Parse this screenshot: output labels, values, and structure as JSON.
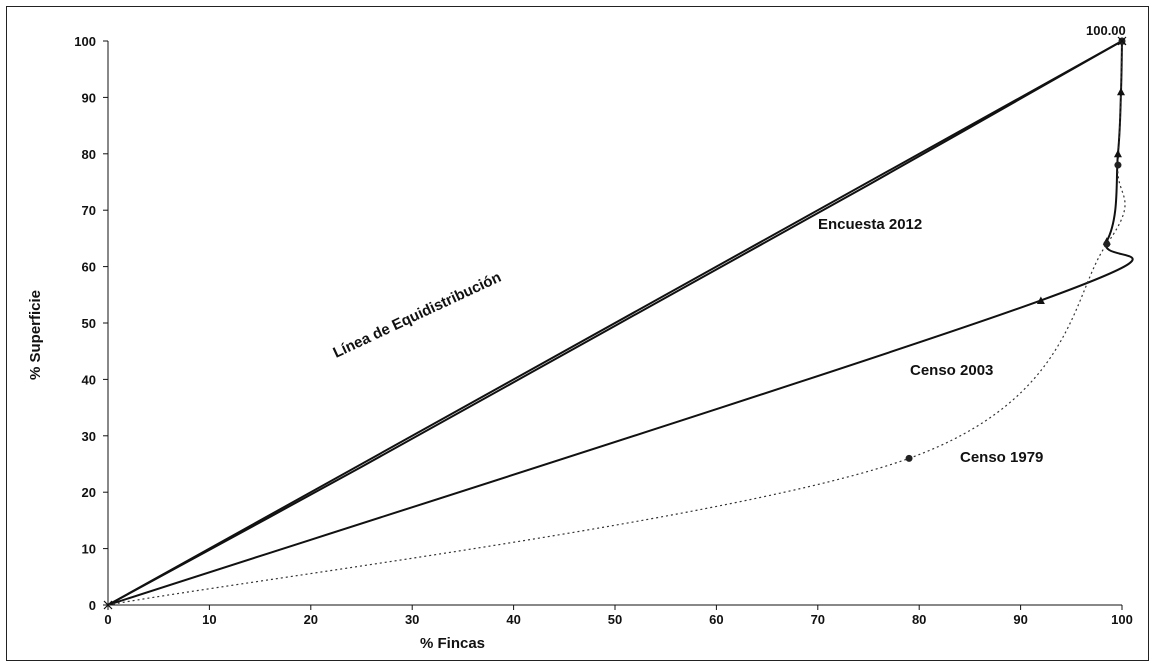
{
  "chart_data": {
    "type": "line",
    "xlabel": "% Fincas",
    "ylabel": "% Superficie",
    "xlim": [
      0,
      100
    ],
    "ylim": [
      0,
      100
    ],
    "x_ticks": [
      0,
      10,
      20,
      30,
      40,
      50,
      60,
      70,
      80,
      90,
      100
    ],
    "y_ticks": [
      0,
      10,
      20,
      30,
      40,
      50,
      60,
      70,
      80,
      90,
      100
    ],
    "grid": false,
    "series": [
      {
        "name": "Línea de Equidistribución",
        "x": [
          0,
          100
        ],
        "y": [
          0,
          100
        ],
        "color": "#111111",
        "style": "solid"
      },
      {
        "name": "Encuesta 2012",
        "x": [
          0,
          25,
          50,
          75,
          100
        ],
        "y": [
          0,
          24.5,
          49.5,
          74.5,
          100
        ],
        "color": "#111111",
        "style": "solid"
      },
      {
        "name": "Censo 2003",
        "x": [
          0,
          92,
          98.5,
          99.6,
          99.9,
          100
        ],
        "y": [
          0,
          54,
          64.5,
          80,
          91,
          100
        ],
        "color": "#111111",
        "style": "solid",
        "marker": "triangle"
      },
      {
        "name": "Censo 1979",
        "x": [
          0,
          79,
          98.5,
          99.6,
          100
        ],
        "y": [
          0,
          26,
          64,
          78,
          100
        ],
        "color": "#333333",
        "style": "dotted",
        "marker": "circle"
      }
    ],
    "annotations": [
      {
        "text": "100.00",
        "x": 100,
        "y": 100
      }
    ],
    "labels": {
      "equidistribucion": "Línea de Equidistribución",
      "encuesta_2012": "Encuesta 2012",
      "censo_2003": "Censo 2003",
      "censo_1979": "Censo 1979"
    }
  }
}
